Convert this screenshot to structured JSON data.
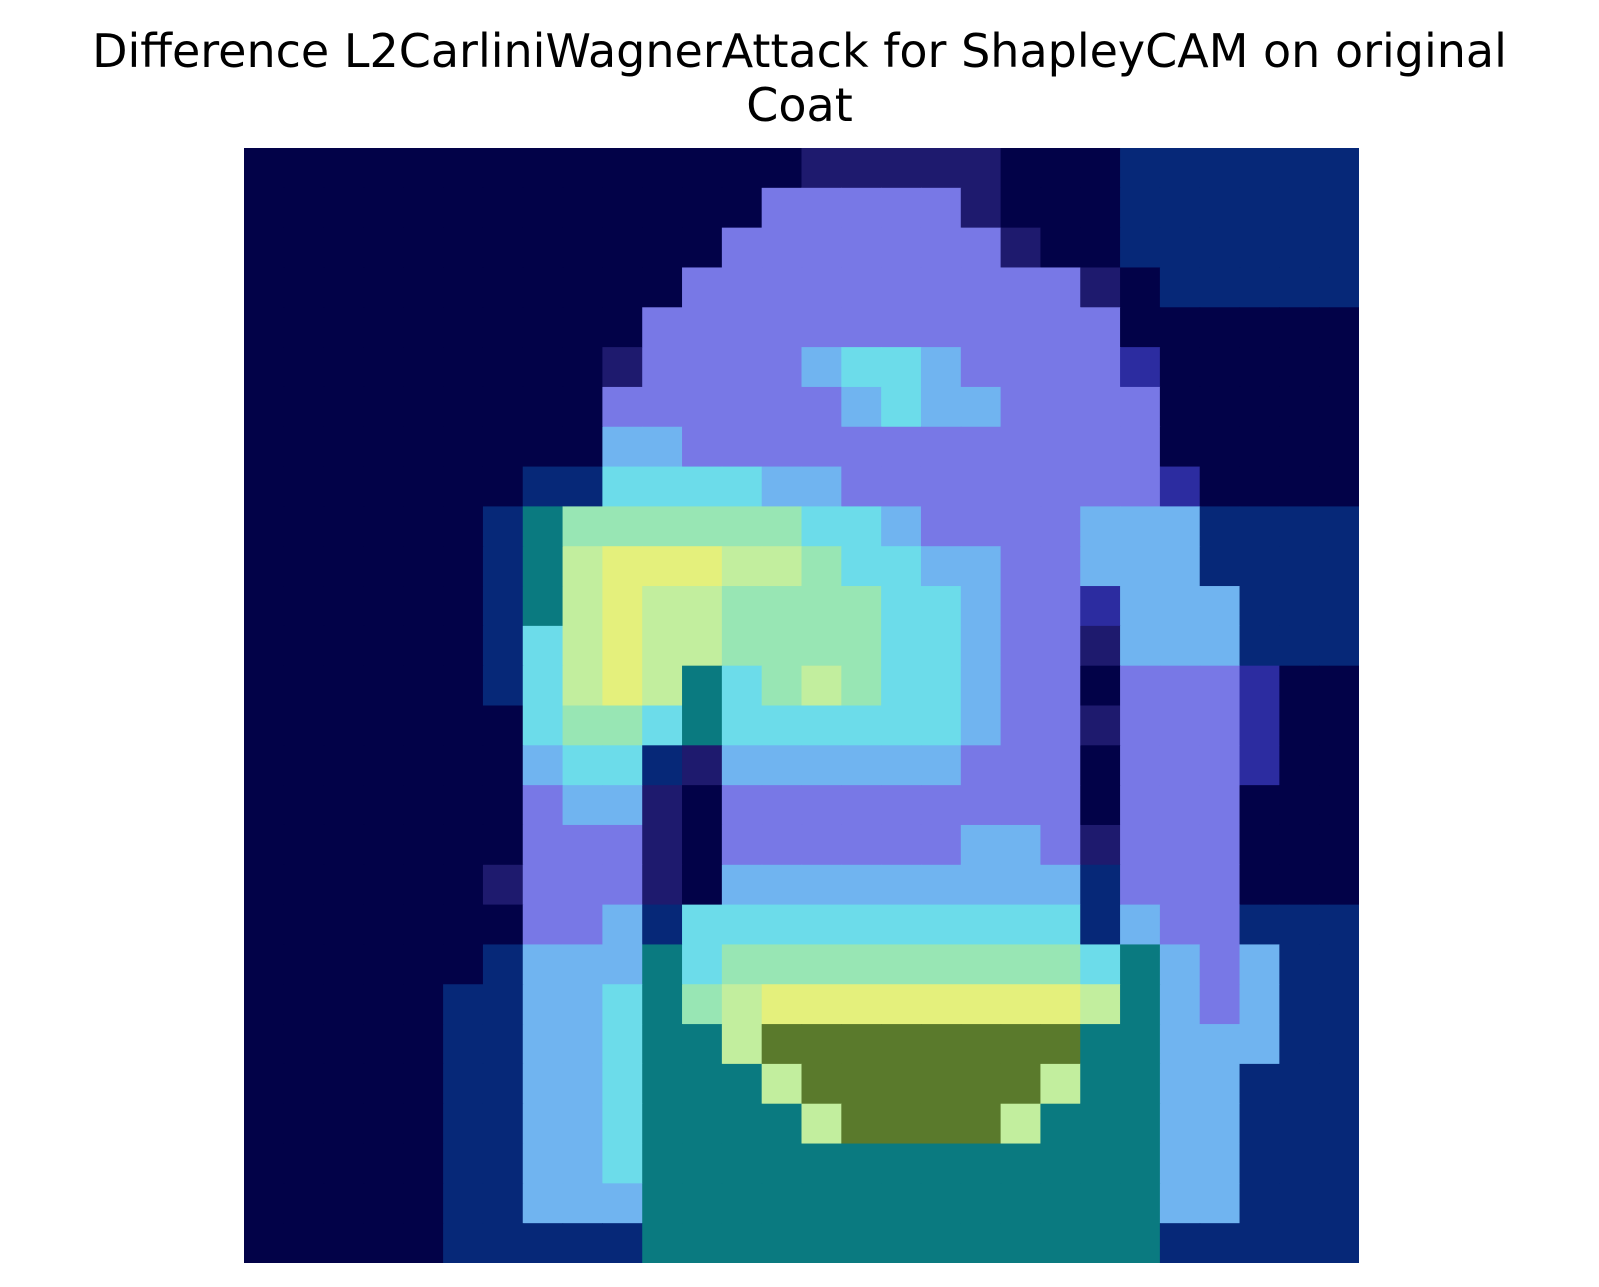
{
  "chart_data": {
    "type": "heatmap",
    "title_line1": "Difference L2CarliniWagnerAttack for ShapleyCAM on original",
    "title_line2": "Coat",
    "rows": 28,
    "cols": 28,
    "axes_visible": false,
    "colormap": "jet overlay on grayscale image",
    "description_grid": [
      "nnnnnnnnnnnnnndddddnnnBBBBBB",
      "nnnnnnnnnnnnnPPPPPdnnnBBBBBB",
      "nnnnnnnnnnnnPPPPPPPdnnBBBBBB",
      "nnnnnnnnnnnPPPPPPPPPPdnBBBBB",
      "nnnnnnnnnnPPPPPPPPPPPPnnnnnn",
      "nnnnnnnnndPPPPLCCLPPPPDnnnnn",
      "nnnnnnnnnPPPPPPLCLLPPPPnnnnn",
      "nnnnnnnnnLLPPPPPPPPPPPPnnnnn",
      "nnnnnnnBBCCCCLLPPPPPPPPDnnnn",
      "nnnnnnBTGGGGGGCCLPPPPLLLBBBB",
      "nnnnnnBTgYYYggGCCLLPPLLLBBBB",
      "nnnnnnBTgYggGGGGCCLPPDLLLBBB",
      "nnnnnnBCgYggGGGGCCLPPdLLLBBB",
      "nnnnnnBCgYgTCGgGCCLPPnPPPDnn",
      "nnnnnnnCGGCTCCCCCCLPPdPPPDnn",
      "nnnnnnnLCCBdLLLLLLPPPnPPPDnn",
      "nnnnnnnPLLdnPPPPPPPPPnPPPnnn",
      "nnnnnnnPPPdnPPPPPPLLPdPPPnnn",
      "nnnnnndPPPdnLLLLLLLLLBPPPnnn",
      "nnnnnnnPPLBCCCCCCCCCCBLPPBBB",
      "nnnnnnBLLLTCGGGGGGGGGCTLPLBB",
      "nnnnnBBLLCTGgYYYYYYYYgTLPLBB",
      "nnnnnBBLLCTTgOOOOOOOOTTLLLBB",
      "nnnnnBBLLCTTTgOOOOOOgTTLLBBB",
      "nnnnnBBLLCTTTTgOOOOgTTTLLBBB",
      "nnnnnBBLLCTTTTTTTTTTTTTLLBBB",
      "nnnnnBBLLLTTTTTTTTTTTTTLLBBB",
      "nnnnnBBBBBTTTTTTTTTTTTTBBBBB"
    ],
    "description_legend": {
      "n": "#020248",
      "d": "#1e1a6e",
      "B": "#062878",
      "D": "#2c2ca0",
      "P": "#7878e6",
      "L": "#70b4f0",
      "C": "#6cdcea",
      "T": "#0a7a80",
      "G": "#98e6b4",
      "g": "#c2ee9e",
      "Y": "#e4f07c",
      "O": "#5a7a2c"
    }
  }
}
